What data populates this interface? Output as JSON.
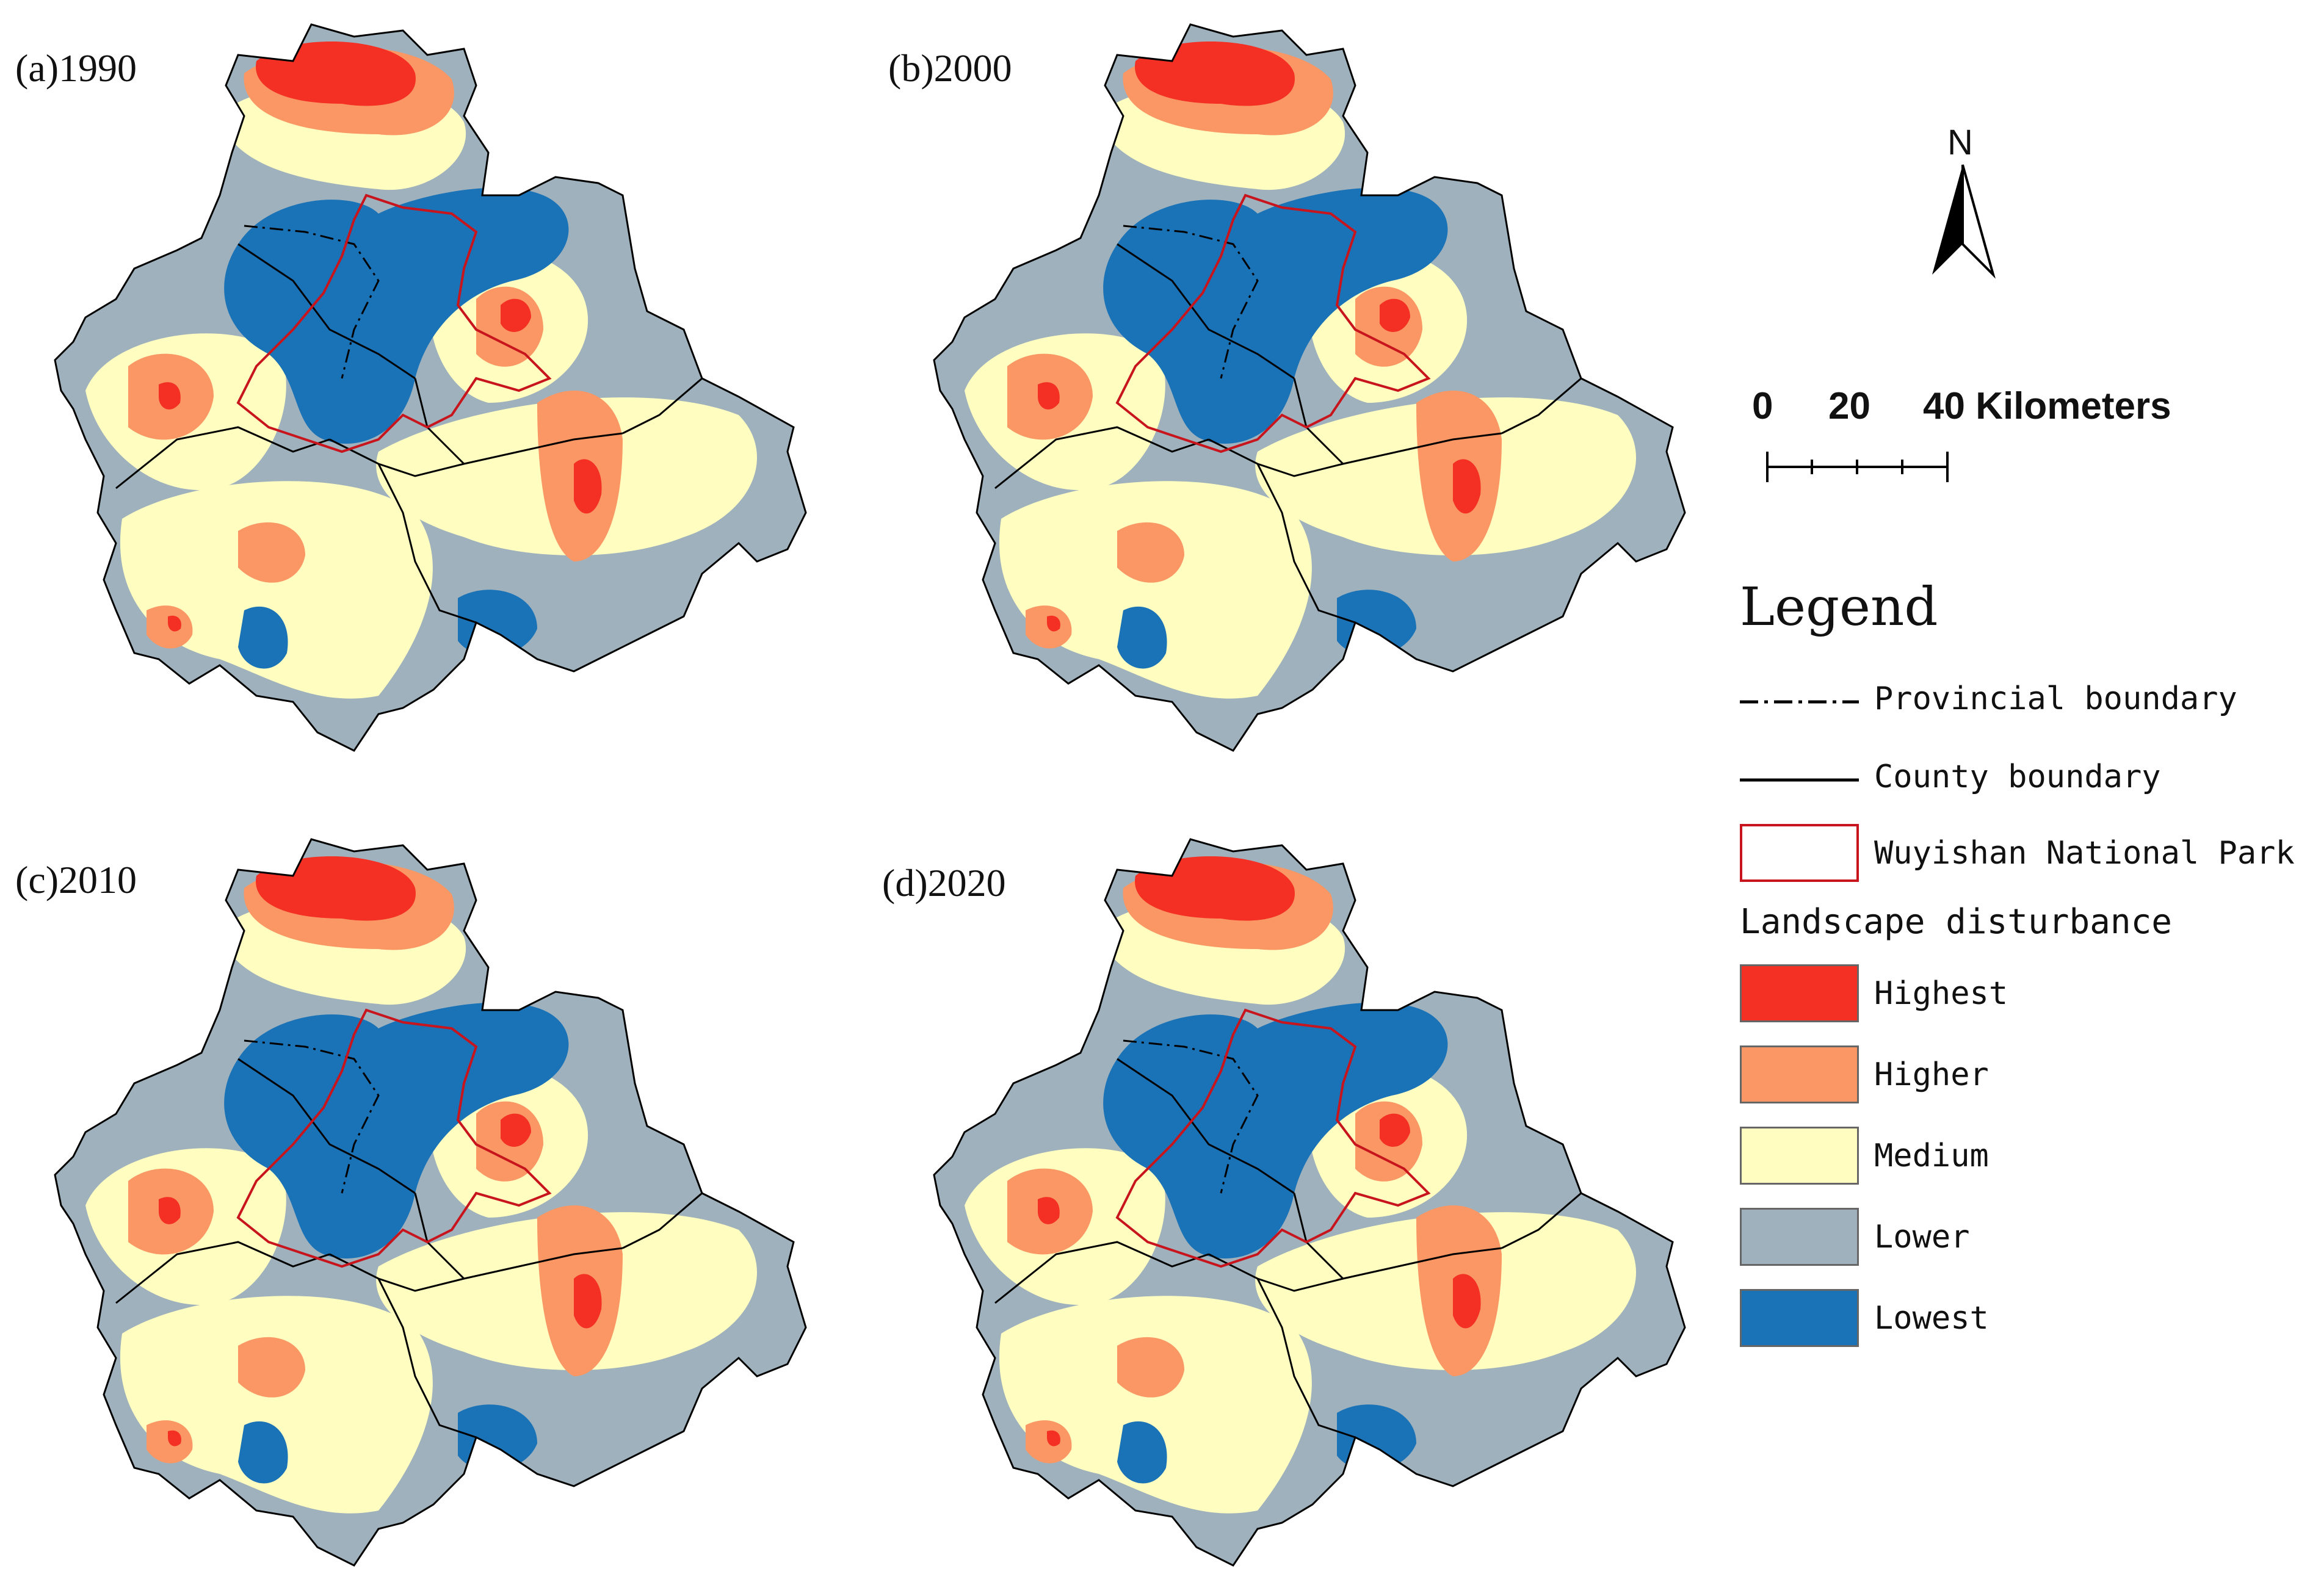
{
  "panels": [
    {
      "id": "a",
      "label": "(a)1990"
    },
    {
      "id": "b",
      "label": "(b)2000"
    },
    {
      "id": "c",
      "label": "(c)2010"
    },
    {
      "id": "d",
      "label": "(d)2020"
    }
  ],
  "north_arrow": {
    "label": "N"
  },
  "scale_bar": {
    "ticks": [
      "0",
      "20",
      "40 Kilometers"
    ]
  },
  "legend": {
    "title": "Legend",
    "boundaries": [
      {
        "label": "Provincial boundary",
        "symbol": "dash-dot-line"
      },
      {
        "label": "County boundary",
        "symbol": "solid-line"
      },
      {
        "label": "Wuyishan National Park",
        "symbol": "red-outline-box"
      }
    ],
    "disturbance_title": "Landscape disturbance",
    "classes": [
      {
        "label": "Highest",
        "color": "#f42f23"
      },
      {
        "label": "Higher",
        "color": "#fa9764"
      },
      {
        "label": "Medium",
        "color": "#fffdc0"
      },
      {
        "label": "Lower",
        "color": "#9eb1bc"
      },
      {
        "label": "Lowest",
        "color": "#1a72b7"
      }
    ]
  }
}
